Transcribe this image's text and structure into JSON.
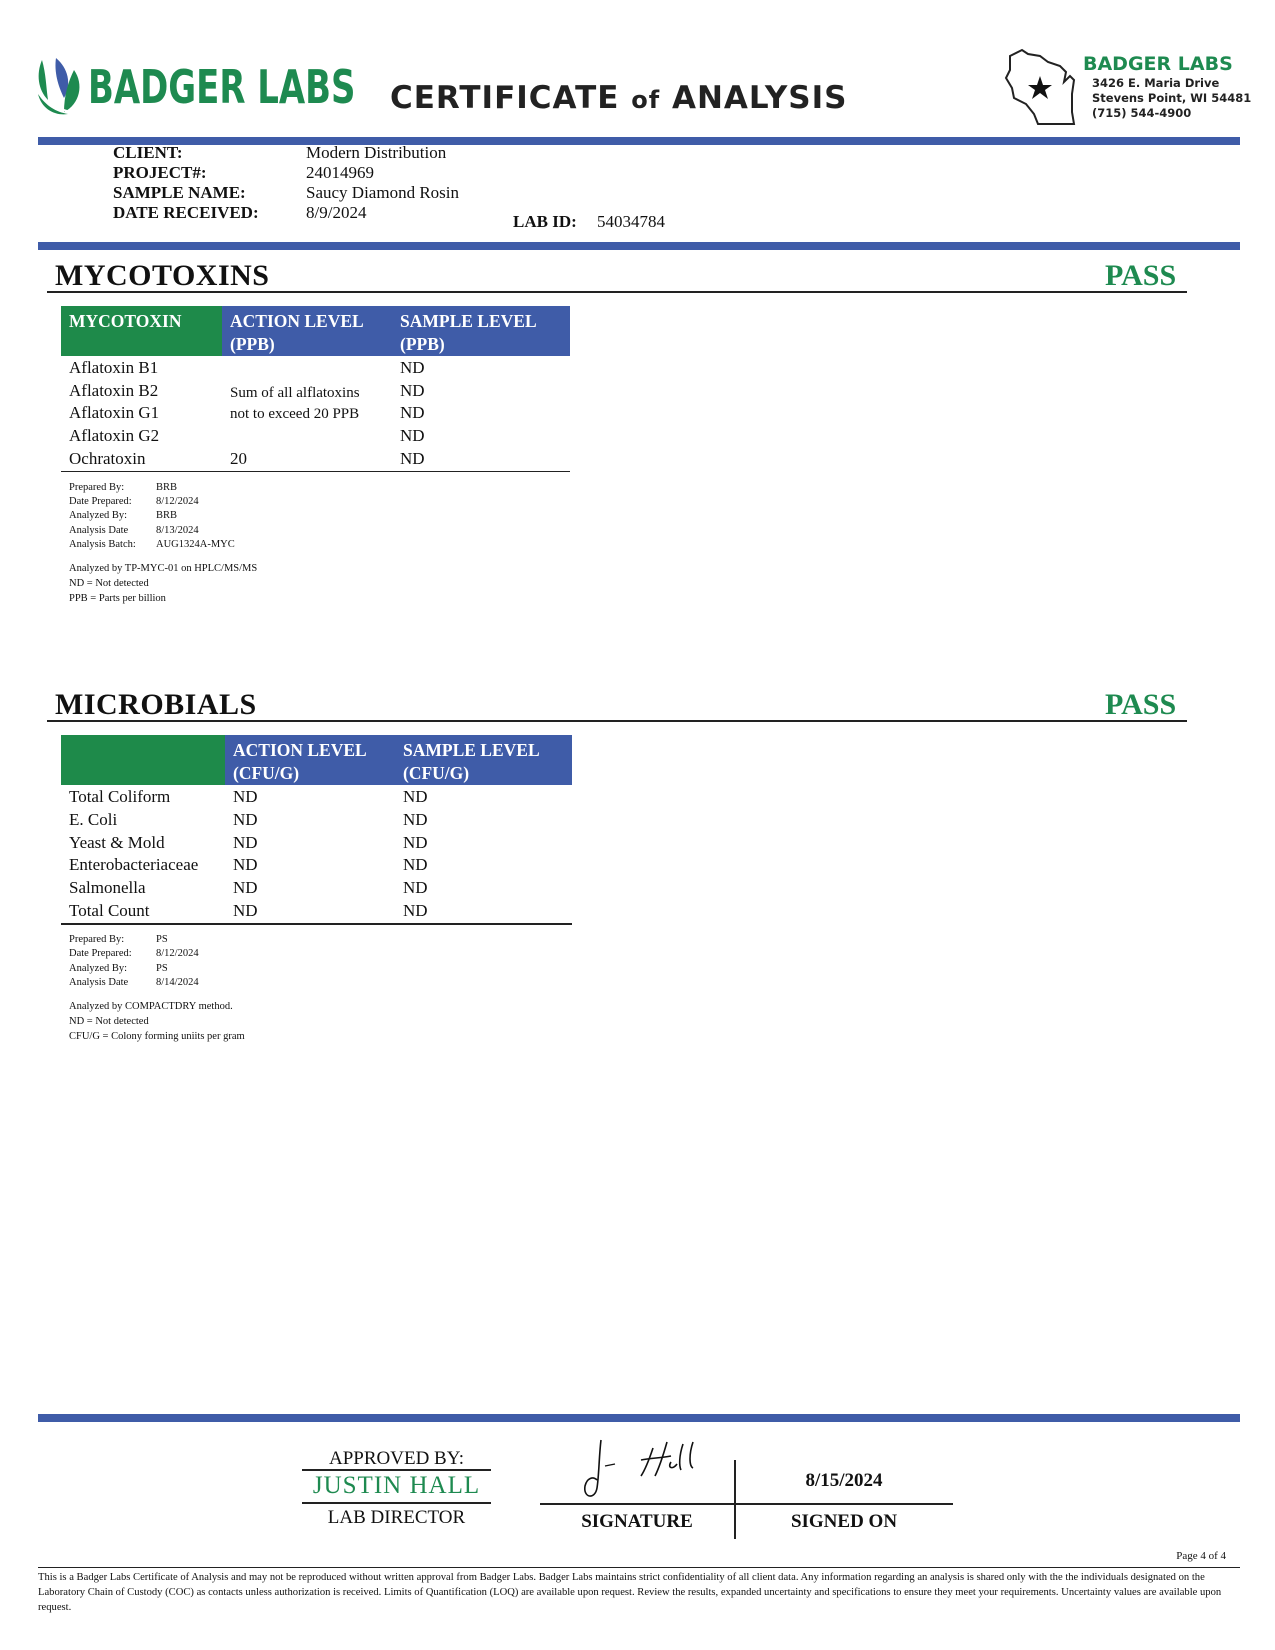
{
  "header": {
    "logo": "BADGER LABS",
    "title": [
      "CERTIFICATE",
      "of",
      "ANALYSIS"
    ],
    "address": {
      "name": "BADGER LABS",
      "lines": [
        "3426 E. Maria Drive",
        "Stevens Point, WI 54481",
        "(715) 544-4900"
      ]
    }
  },
  "client": {
    "fields": [
      {
        "label": "CLIENT:",
        "value": "Modern Distribution"
      },
      {
        "label": "PROJECT#:",
        "value": "24014969"
      },
      {
        "label": "SAMPLE NAME:",
        "value": "Saucy Diamond Rosin"
      },
      {
        "label": "DATE RECEIVED:",
        "value": "8/9/2024"
      }
    ],
    "lab_id": {
      "label": "LAB ID:",
      "value": "54034784"
    }
  },
  "mycotoxins": {
    "title": "MYCOTOXINS",
    "result": "PASS",
    "columns": [
      [
        "MYCOTOXIN"
      ],
      [
        "ACTION LEVEL",
        "(PPB)"
      ],
      [
        "SAMPLE LEVEL",
        "(PPB)"
      ]
    ],
    "rows": [
      {
        "name": "Aflatoxin B1",
        "sample": "ND"
      },
      {
        "name": "Aflatoxin B2",
        "sample": "ND"
      },
      {
        "name": "Aflatoxin G1",
        "sample": "ND"
      },
      {
        "name": "Aflatoxin G2",
        "sample": "ND"
      },
      {
        "name": "Ochratoxin",
        "action": "20",
        "sample": "ND"
      }
    ],
    "action_note": [
      "Sum of all alflatoxins",
      "not to exceed 20 PPB"
    ],
    "meta": [
      {
        "label": "Prepared By:",
        "value": "BRB"
      },
      {
        "label": "Date Prepared:",
        "value": "8/12/2024"
      },
      {
        "label": "Analyzed By:",
        "value": "BRB"
      },
      {
        "label": "Analysis Date",
        "value": "8/13/2024"
      },
      {
        "label": "Analysis Batch:",
        "value": "AUG1324A-MYC"
      }
    ],
    "notes": [
      "Analyzed by TP-MYC-01 on HPLC/MS/MS",
      "ND = Not detected",
      "PPB = Parts per billion"
    ]
  },
  "microbials": {
    "title": "MICROBIALS",
    "result": "PASS",
    "columns": [
      [
        "ACTION LEVEL",
        "(CFU/G)"
      ],
      [
        "SAMPLE LEVEL",
        "(CFU/G)"
      ]
    ],
    "rows": [
      {
        "name": "Total Coliform",
        "action": "ND",
        "sample": "ND"
      },
      {
        "name": "E. Coli",
        "action": "ND",
        "sample": "ND"
      },
      {
        "name": "Yeast & Mold",
        "action": "ND",
        "sample": "ND"
      },
      {
        "name": "Enterobacteriaceae",
        "action": "ND",
        "sample": "ND"
      },
      {
        "name": "Salmonella",
        "action": "ND",
        "sample": "ND"
      },
      {
        "name": "Total Count",
        "action": "ND",
        "sample": "ND"
      }
    ],
    "meta": [
      {
        "label": "Prepared By:",
        "value": "PS"
      },
      {
        "label": "Date Prepared:",
        "value": "8/12/2024"
      },
      {
        "label": "Analyzed By:",
        "value": "PS"
      },
      {
        "label": "Analysis Date",
        "value": "8/14/2024"
      }
    ],
    "notes": [
      "Analyzed by COMPACTDRY method.",
      "ND = Not detected",
      "CFU/G = Colony forming uniits per gram"
    ]
  },
  "footer": {
    "approved_label": "APPROVED BY:",
    "approver": "JUSTIN HALL",
    "role": "LAB DIRECTOR",
    "signature_label": "SIGNATURE",
    "signed_on_label": "SIGNED ON",
    "signed_date": "8/15/2024",
    "page": "Page 4 of 4",
    "disclaimer": "This is a Badger Labs Certificate of Analysis and may not be reproduced without written approval from Badger Labs. Badger Labs maintains strict confidentiality of all client data. Any information regarding an analysis is shared only with the the individuals designated on the Laboratory Chain of Custody (COC) as contacts unless authorization is received. Limits of Quantification (LOQ) are available upon request. Review the results, expanded uncertainty and specifications to ensure they meet your requirements. Uncertainty values are available upon request."
  }
}
